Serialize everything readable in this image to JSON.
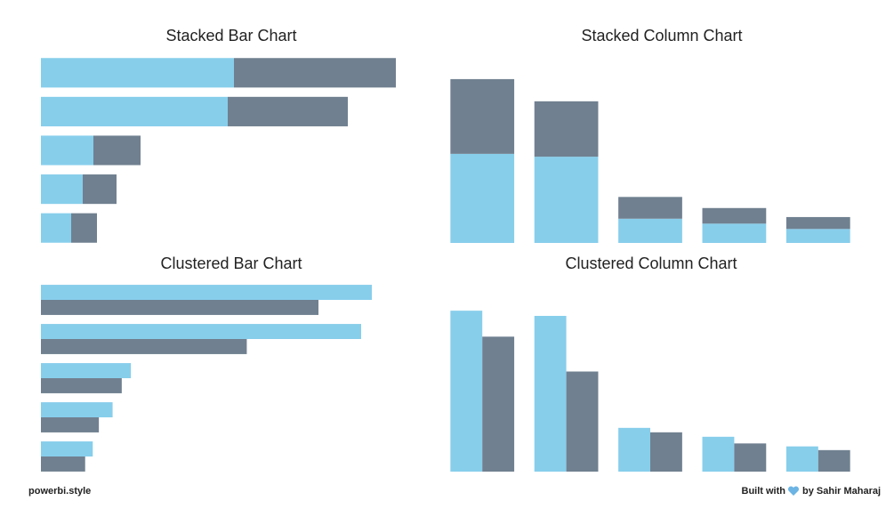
{
  "chart_data": [
    {
      "type": "stacked_bar",
      "title": "Stacked Bar Chart",
      "xlim": [
        0,
        420
      ],
      "series": [
        {
          "color": "#87ceeb",
          "values": [
            217,
            210,
            59,
            47,
            34
          ]
        },
        {
          "color": "#708090",
          "values": [
            182,
            135,
            53,
            38,
            29
          ]
        }
      ]
    },
    {
      "type": "stacked_column",
      "title": "Stacked Column Chart",
      "ylim": [
        0,
        440
      ],
      "series": [
        {
          "color": "#87ceeb",
          "values": [
            217,
            210,
            59,
            47,
            34
          ]
        },
        {
          "color": "#708090",
          "values": [
            182,
            135,
            53,
            38,
            29
          ]
        }
      ]
    },
    {
      "type": "clustered_bar",
      "title": "Clustered Bar Chart",
      "xlim": [
        0,
        245
      ],
      "series": [
        {
          "color": "#87ceeb",
          "values": [
            217,
            210,
            59,
            47,
            34
          ]
        },
        {
          "color": "#708090",
          "values": [
            182,
            135,
            53,
            38,
            29
          ]
        }
      ]
    },
    {
      "type": "clustered_column",
      "title": "Clustered Column Chart",
      "ylim": [
        0,
        228
      ],
      "series": [
        {
          "color": "#87ceeb",
          "values": [
            217,
            210,
            59,
            47,
            34
          ]
        },
        {
          "color": "#708090",
          "values": [
            182,
            135,
            53,
            38,
            29
          ]
        }
      ]
    }
  ],
  "footer": {
    "site": "powerbi.style",
    "built_with": "Built with",
    "author": "by Sahir Maharaj"
  }
}
